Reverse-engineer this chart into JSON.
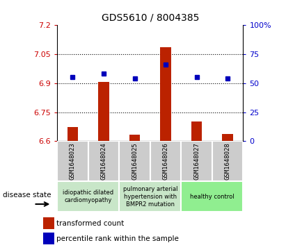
{
  "title": "GDS5610 / 8004385",
  "samples": [
    "GSM1648023",
    "GSM1648024",
    "GSM1648025",
    "GSM1648026",
    "GSM1648027",
    "GSM1648028"
  ],
  "red_values": [
    6.672,
    6.905,
    6.635,
    7.085,
    6.7,
    6.638
  ],
  "blue_values": [
    55,
    58,
    54,
    66,
    55,
    54
  ],
  "ylim_left": [
    6.6,
    7.2
  ],
  "ylim_right": [
    0,
    100
  ],
  "yticks_left": [
    6.6,
    6.75,
    6.9,
    7.05,
    7.2
  ],
  "yticks_right": [
    0,
    25,
    50,
    75,
    100
  ],
  "ytick_labels_left": [
    "6.6",
    "6.75",
    "6.9",
    "7.05",
    "7.2"
  ],
  "ytick_labels_right": [
    "0",
    "25",
    "50",
    "75",
    "100%"
  ],
  "grid_values": [
    6.75,
    6.9,
    7.05
  ],
  "group_colors": [
    "#c8e6c8",
    "#c8e6c8",
    "#90ee90"
  ],
  "group_ranges": [
    [
      0,
      1
    ],
    [
      2,
      3
    ],
    [
      4,
      5
    ]
  ],
  "group_labels": [
    "idiopathic dilated\ncardiomyopathy",
    "pulmonary arterial\nhypertension with\nBMPR2 mutation",
    "healthy control"
  ],
  "bar_color": "#bb2200",
  "dot_color": "#0000bb",
  "sample_bg": "#cccccc",
  "legend_red_label": "transformed count",
  "legend_blue_label": "percentile rank within the sample",
  "disease_state_label": "disease state",
  "bar_width": 0.35
}
